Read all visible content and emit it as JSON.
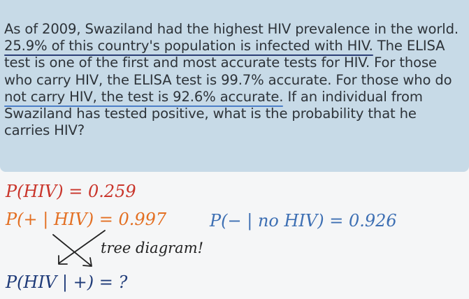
{
  "problem": {
    "line1": "As of 2009, Swaziland had the highest HIV prevalence in the world.",
    "seg_prevalence": "25.9% of this country's population is infected with HIV.",
    "seg_after_prevalence": " The ELISA test is one of the first and most accurate tests for HIV. ",
    "seg_sensitivity": "For those who carry HIV, the ELISA test is 99.7% accurate.",
    "seg_between": " For those who do ",
    "seg_specificity": "not carry HIV, the test is 92.6% accurate.",
    "seg_question": " If an individual from Swaziland has tested positive, what is the probability that he carries HIV?"
  },
  "notes": {
    "p_hiv": "P(HIV) = 0.259",
    "p_pos_given_hiv": "P(+ | HIV) = 0.997",
    "p_neg_given_no_hiv": "P(− | no HIV) = 0.926",
    "tree_note": "tree diagram!",
    "p_hiv_given_pos": "P(HIV | +) = ?"
  },
  "colors": {
    "box_background": "#c7dae7",
    "red_ink": "#c9352b",
    "orange_ink": "#e36f22",
    "blue_ink": "#3d6fb3",
    "navy_ink": "#1e3a78"
  }
}
